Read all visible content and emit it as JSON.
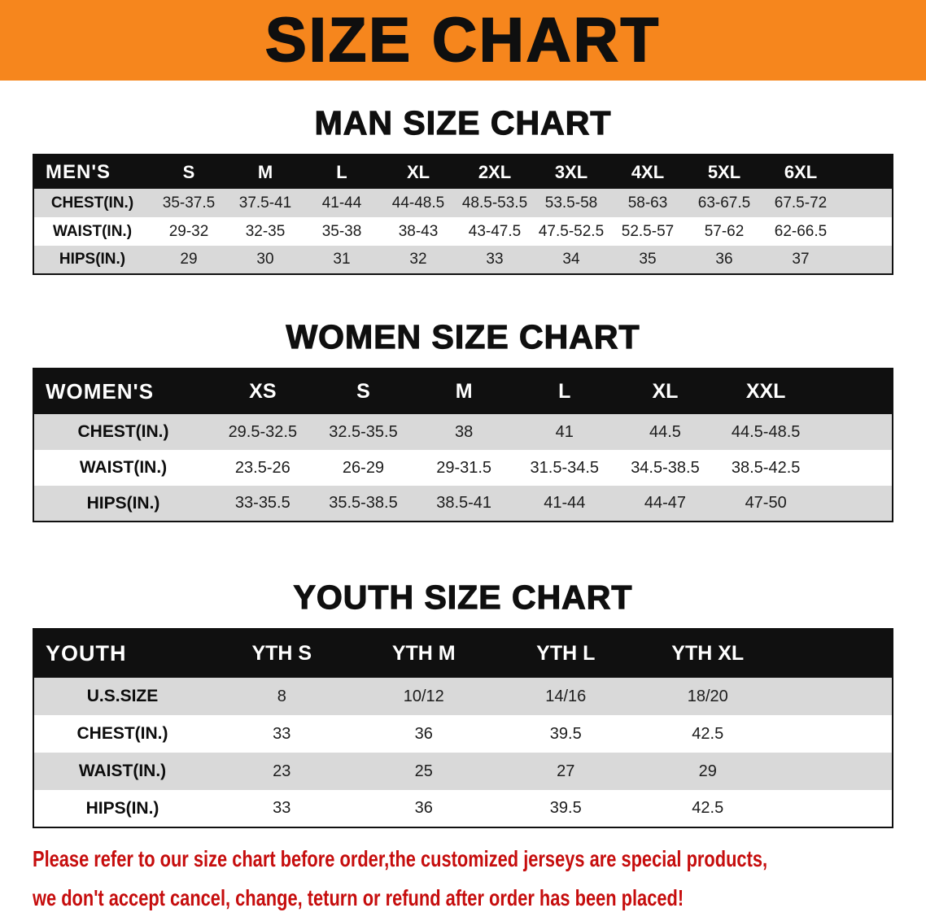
{
  "banner": {
    "title": "SIZE CHART"
  },
  "colors": {
    "banner_bg": "#f6861d",
    "title_text": "#0f0f0f",
    "table_header_bg": "#101010",
    "table_header_text": "#ffffff",
    "row_stripe": "#d9d9d9",
    "disclaimer_text": "#c60d0d"
  },
  "sections": [
    {
      "heading": "MAN SIZE CHART",
      "table": {
        "header": [
          "MEN'S",
          "S",
          "M",
          "L",
          "XL",
          "2XL",
          "3XL",
          "4XL",
          "5XL",
          "6XL"
        ],
        "rows": [
          {
            "label": "CHEST(IN.)",
            "values": [
              "35-37.5",
              "37.5-41",
              "41-44",
              "44-48.5",
              "48.5-53.5",
              "53.5-58",
              "58-63",
              "63-67.5",
              "67.5-72"
            ]
          },
          {
            "label": "WAIST(IN.)",
            "values": [
              "29-32",
              "32-35",
              "35-38",
              "38-43",
              "43-47.5",
              "47.5-52.5",
              "52.5-57",
              "57-62",
              "62-66.5"
            ]
          },
          {
            "label": "HIPS(IN.)",
            "values": [
              "29",
              "30",
              "31",
              "32",
              "33",
              "34",
              "35",
              "36",
              "37"
            ]
          }
        ]
      }
    },
    {
      "heading": "WOMEN SIZE CHART",
      "table": {
        "header": [
          "WOMEN'S",
          "XS",
          "S",
          "M",
          "L",
          "XL",
          "XXL"
        ],
        "rows": [
          {
            "label": "CHEST(IN.)",
            "values": [
              "29.5-32.5",
              "32.5-35.5",
              "38",
              "41",
              "44.5",
              "44.5-48.5"
            ]
          },
          {
            "label": "WAIST(IN.)",
            "values": [
              "23.5-26",
              "26-29",
              "29-31.5",
              "31.5-34.5",
              "34.5-38.5",
              "38.5-42.5"
            ]
          },
          {
            "label": "HIPS(IN.)",
            "values": [
              "33-35.5",
              "35.5-38.5",
              "38.5-41",
              "41-44",
              "44-47",
              "47-50"
            ]
          }
        ]
      }
    },
    {
      "heading": "YOUTH SIZE CHART",
      "table": {
        "header": [
          "YOUTH",
          "YTH S",
          "YTH M",
          "YTH L",
          "YTH XL"
        ],
        "rows": [
          {
            "label": "U.S.SIZE",
            "values": [
              "8",
              "10/12",
              "14/16",
              "18/20"
            ]
          },
          {
            "label": "CHEST(IN.)",
            "values": [
              "33",
              "36",
              "39.5",
              "42.5"
            ]
          },
          {
            "label": "WAIST(IN.)",
            "values": [
              "23",
              "25",
              "27",
              "29"
            ]
          },
          {
            "label": "HIPS(IN.)",
            "values": [
              "33",
              "36",
              "39.5",
              "42.5"
            ]
          }
        ]
      }
    }
  ],
  "disclaimer": {
    "line1": "Please refer to our size chart before order,the customized jerseys are special products,",
    "line2": "we don't accept cancel, change, teturn or refund after order has been placed!"
  }
}
